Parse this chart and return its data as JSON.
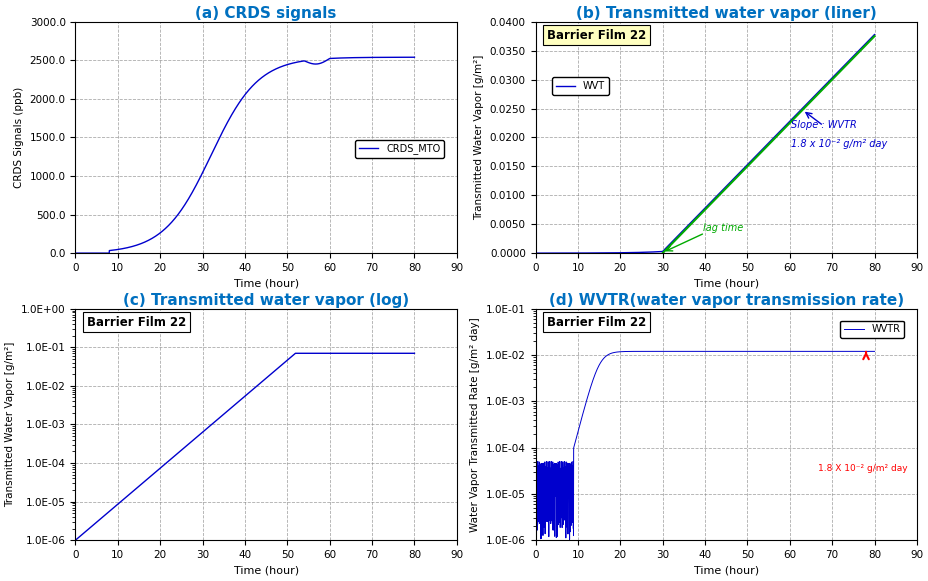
{
  "title_a": "(a) CRDS signals",
  "title_b": "(b) Transmitted water vapor (liner)",
  "title_c": "(c) Transmitted water vapor (log)",
  "title_d": "(d) WVTR(water vapor transmission rate)",
  "xlabel": "Time (hour)",
  "ylabel_a": "CRDS Signals (ppb)",
  "ylabel_b": "Transmitted Water Vapor [g/m²]",
  "ylabel_c": "Transmitted Water Vapor [g/m²]",
  "ylabel_d": "Water Vapor Transmitted Rate [g/m² day]",
  "title_color": "#0070C0",
  "line_color_blue": "#0000CD",
  "line_color_green": "#00AA00",
  "line_color_red": "#FF0000",
  "bg_color": "#FFFFFF",
  "grid_color": "#888888",
  "legend_a": "CRDS_MTO",
  "legend_b": "WVT",
  "legend_d": "WVTR",
  "barrier_label": "Barrier Film 22",
  "slope_label": "Slope : WVTR",
  "slope_value": "1.8 x 10⁻² g/m² day",
  "lag_time_label": "lag time",
  "wvtr_value_label": "1.8 X 10⁻² g/m² day",
  "xticks": [
    0,
    10,
    20,
    30,
    40,
    50,
    60,
    70,
    80,
    90
  ]
}
